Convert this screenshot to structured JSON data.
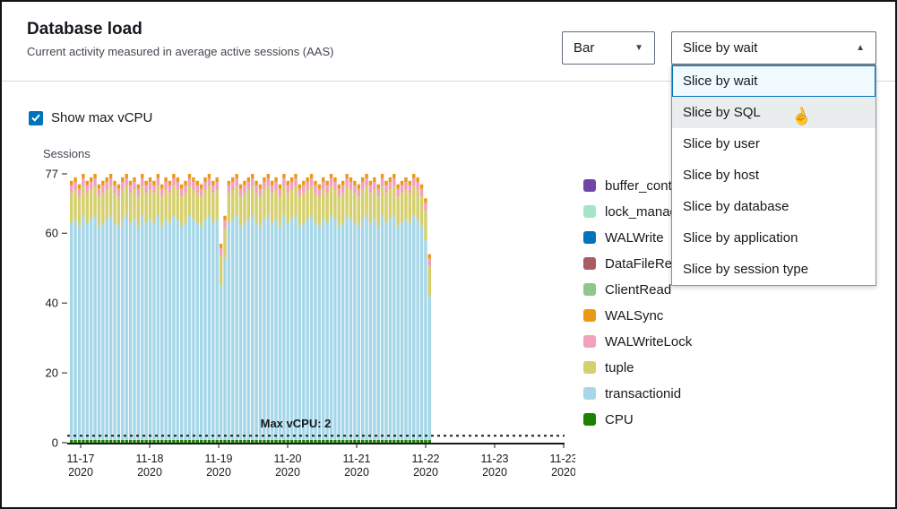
{
  "header": {
    "title": "Database load",
    "subtitle": "Current activity measured in average active sessions (AAS)"
  },
  "controls": {
    "chart_type": {
      "value": "Bar"
    },
    "slice_by": {
      "value": "Slice by wait",
      "options": [
        "Slice by wait",
        "Slice by SQL",
        "Slice by user",
        "Slice by host",
        "Slice by database",
        "Slice by application",
        "Slice by session type"
      ],
      "selected_index": 0,
      "hovered_index": 1
    }
  },
  "show_max_vcpu": {
    "label": "Show max vCPU",
    "checked": true
  },
  "legend": {
    "items": [
      {
        "label": "buffer_cont",
        "color": "#7145a8"
      },
      {
        "label": "lock_manag",
        "color": "#a5e6cb"
      },
      {
        "label": "WALWrite",
        "color": "#0273bb"
      },
      {
        "label": "DataFileRea",
        "color": "#a85d62"
      },
      {
        "label": "ClientRead",
        "color": "#8cc88b"
      },
      {
        "label": "WALSync",
        "color": "#eb9b13"
      },
      {
        "label": "WALWriteLock",
        "color": "#f2a0bf"
      },
      {
        "label": "tuple",
        "color": "#d5cf6e"
      },
      {
        "label": "transactionid",
        "color": "#a6d7e8"
      },
      {
        "label": "CPU",
        "color": "#1d8102"
      }
    ]
  },
  "chart_data": {
    "type": "stacked-bar",
    "title": "Database load",
    "ylabel": "Sessions",
    "xlabel": "",
    "ylim": [
      0,
      77
    ],
    "y_ticks": [
      0,
      20,
      40,
      60,
      77
    ],
    "x_ticks": [
      [
        "11-17",
        "2020"
      ],
      [
        "11-18",
        "2020"
      ],
      [
        "11-19",
        "2020"
      ],
      [
        "11-20",
        "2020"
      ],
      [
        "11-21",
        "2020"
      ],
      [
        "11-22",
        "2020"
      ],
      [
        "11-23",
        "2020"
      ],
      [
        "11-23",
        "2020"
      ]
    ],
    "grid": false,
    "legend_position": "right",
    "max_vcpu": {
      "value": 2,
      "label": "Max vCPU: 2"
    },
    "series_order": [
      "CPU",
      "transactionid",
      "tuple",
      "WALWriteLock",
      "WALSync"
    ],
    "segments_fixed": {
      "CPU": 0.8,
      "tuple": 8.5,
      "WALWriteLock": 2.2,
      "WALSync": 1.3
    },
    "colors": {
      "CPU": "#1d8102",
      "transactionid": "#a6d7e8",
      "tuple": "#d5cf6e",
      "WALWriteLock": "#f2a0bf",
      "WALSync": "#eb9b13"
    },
    "totals": [
      75,
      76,
      74,
      77,
      75,
      76,
      77,
      74,
      75,
      76,
      77,
      75,
      74,
      76,
      77,
      75,
      76,
      74,
      77,
      75,
      76,
      75,
      77,
      74,
      76,
      75,
      77,
      76,
      74,
      75,
      77,
      76,
      75,
      74,
      76,
      77,
      75,
      76,
      57,
      65,
      75,
      76,
      77,
      74,
      75,
      76,
      77,
      75,
      74,
      76,
      77,
      75,
      76,
      74,
      77,
      75,
      76,
      77,
      74,
      75,
      76,
      77,
      75,
      74,
      76,
      75,
      77,
      76,
      74,
      75,
      77,
      76,
      75,
      74,
      76,
      77,
      75,
      76,
      74,
      77,
      75,
      76,
      77,
      74,
      75,
      76,
      75,
      77,
      76,
      74,
      70,
      54
    ]
  }
}
